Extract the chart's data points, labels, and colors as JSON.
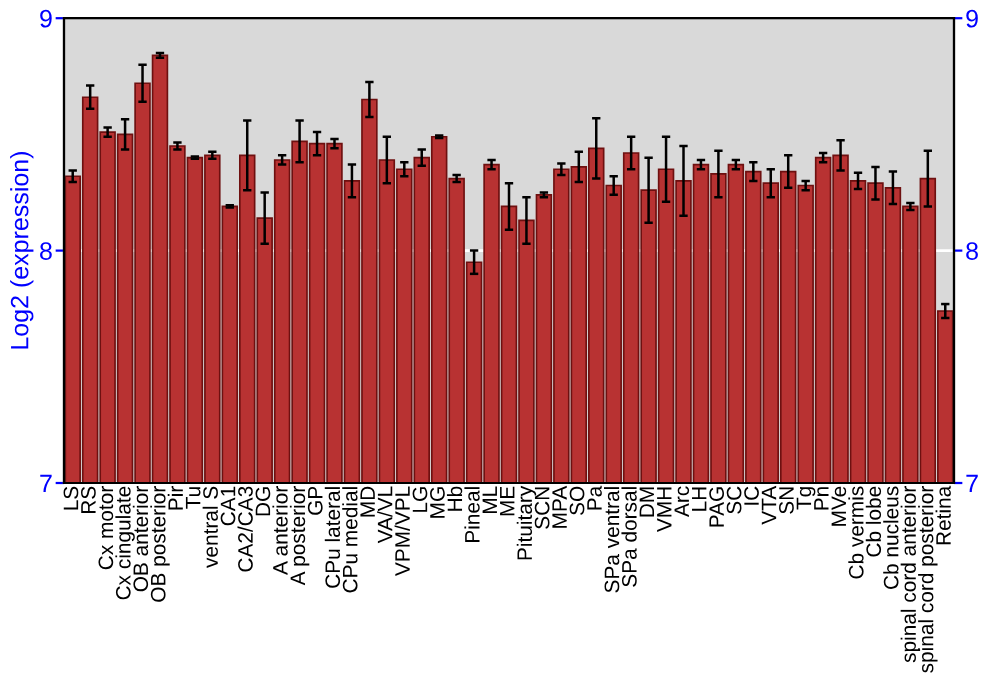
{
  "chart_data": {
    "type": "bar",
    "ylabel": "Log2 (expression)",
    "categories": [
      "LS",
      "RS",
      "Cx motor",
      "Cx cingulate",
      "OB anterior",
      "OB posterior",
      "Pir",
      "Tu",
      "ventral S",
      "CA1",
      "CA2/CA3",
      "DG",
      "A anterior",
      "A posterior",
      "GP",
      "CPu lateral",
      "CPu medial",
      "MD",
      "VA/VL",
      "VPM/VPL",
      "LG",
      "MG",
      "Hb",
      "Pineal",
      "ML",
      "ME",
      "Pituitary",
      "SCN",
      "MPA",
      "SO",
      "Pa",
      "SPa ventral",
      "SPa dorsal",
      "DM",
      "VMH",
      "Arc",
      "LH",
      "PAG",
      "SC",
      "IC",
      "VTA",
      "SN",
      "Tg",
      "Pn",
      "MVe",
      "Cb vermis",
      "Cb lobe",
      "Cb nucleus",
      "spinal cord anterior",
      "spinal cord posterior",
      "Retina"
    ],
    "series": [
      {
        "color": "#b83232",
        "values": [
          8.32,
          8.66,
          8.51,
          8.5,
          8.72,
          8.84,
          8.45,
          8.4,
          8.41,
          8.19,
          8.41,
          8.14,
          8.39,
          8.47,
          8.46,
          8.46,
          8.3,
          8.65,
          8.39,
          8.35,
          8.4,
          8.49,
          8.31,
          7.95,
          8.37,
          8.19,
          8.13,
          8.24,
          8.35,
          8.36,
          8.44,
          8.28,
          8.42,
          8.26,
          8.35,
          8.3,
          8.37,
          8.33,
          8.37,
          8.34,
          8.29,
          8.34,
          8.28,
          8.4,
          8.41,
          8.3,
          8.29,
          8.27,
          8.19,
          8.31,
          7.74
        ],
        "errors": [
          0.025,
          0.05,
          0.02,
          0.065,
          0.08,
          0.01,
          0.015,
          0.005,
          0.015,
          0.005,
          0.15,
          0.11,
          0.02,
          0.09,
          0.05,
          0.02,
          0.07,
          0.075,
          0.1,
          0.03,
          0.035,
          0.005,
          0.015,
          0.05,
          0.02,
          0.1,
          0.1,
          0.01,
          0.025,
          0.065,
          0.13,
          0.04,
          0.07,
          0.14,
          0.14,
          0.15,
          0.02,
          0.1,
          0.02,
          0.04,
          0.06,
          0.07,
          0.02,
          0.02,
          0.065,
          0.035,
          0.07,
          0.07,
          0.015,
          0.12,
          0.03
        ]
      }
    ],
    "ylim": [
      7,
      9
    ],
    "yticks": [
      7,
      8,
      9
    ],
    "y2lim": [
      7,
      9
    ],
    "y2ticks": [
      7,
      8,
      9
    ],
    "grid": "y"
  }
}
